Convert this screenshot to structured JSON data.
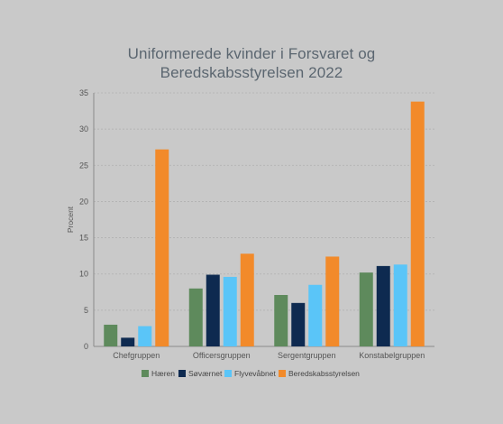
{
  "chart_data": {
    "type": "bar",
    "title_lines": [
      "Uniformerede kvinder i Forsvaret og",
      "Beredskabsstyrelsen 2022"
    ],
    "ylabel": "Procent",
    "xlabel": "",
    "ylim": [
      0,
      35
    ],
    "yticks": [
      0,
      5,
      10,
      15,
      20,
      25,
      30,
      35
    ],
    "grid": true,
    "legend_position": "bottom",
    "categories": [
      "Chefgruppen",
      "Officersgruppen",
      "Sergentgruppen",
      "Konstabelgruppen"
    ],
    "series": [
      {
        "name": "Hæren",
        "color": "#5e8a5c",
        "values": [
          3.0,
          8.0,
          7.1,
          10.2
        ]
      },
      {
        "name": "Søværnet",
        "color": "#0e2a50",
        "values": [
          1.2,
          9.9,
          6.0,
          11.1
        ]
      },
      {
        "name": "Flyvevåbnet",
        "color": "#5ac5f8",
        "values": [
          2.8,
          9.6,
          8.5,
          11.3
        ]
      },
      {
        "name": "Beredskabsstyrelsen",
        "color": "#f28a2a",
        "values": [
          27.2,
          12.8,
          12.4,
          33.8
        ]
      }
    ]
  }
}
